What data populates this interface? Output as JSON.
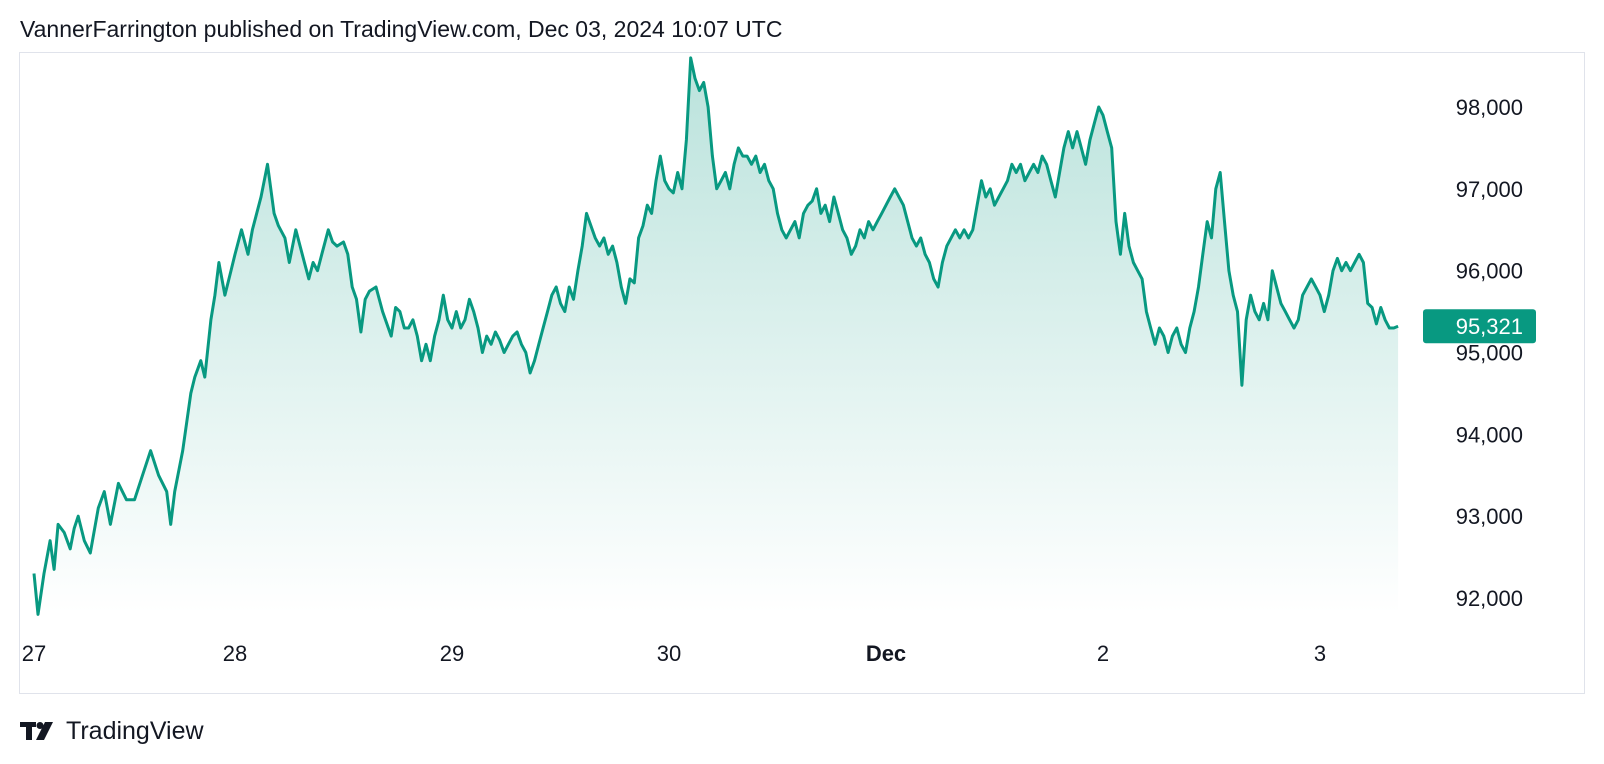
{
  "header": {
    "published_text": "VannerFarrington published on TradingView.com, Dec 03, 2024 10:07 UTC"
  },
  "footer": {
    "brand": "TradingView"
  },
  "colors": {
    "line": "#089981",
    "last_price_bg": "#089981",
    "border": "#e0e3eb"
  },
  "chart_data": {
    "type": "area",
    "x_ticks": [
      {
        "label": "27",
        "x": 0,
        "bold": false
      },
      {
        "label": "28",
        "x": 1,
        "bold": false
      },
      {
        "label": "29",
        "x": 2,
        "bold": false
      },
      {
        "label": "30",
        "x": 3,
        "bold": false
      },
      {
        "label": "Dec",
        "x": 4,
        "bold": true
      },
      {
        "label": "2",
        "x": 5,
        "bold": false
      },
      {
        "label": "3",
        "x": 6,
        "bold": false
      }
    ],
    "y_ticks": [
      92000,
      93000,
      94000,
      95000,
      96000,
      97000,
      98000
    ],
    "y_tick_labels": [
      "92,000",
      "93,000",
      "94,000",
      "95,000",
      "96,000",
      "97,000",
      "98,000"
    ],
    "ylim": [
      91750,
      98700
    ],
    "xlim": [
      0,
      6.55
    ],
    "last_price": 95321,
    "last_price_label": "95,321",
    "grid": false,
    "series": [
      {
        "points": [
          [
            0.0,
            92300
          ],
          [
            0.02,
            91800
          ],
          [
            0.05,
            92300
          ],
          [
            0.08,
            92700
          ],
          [
            0.1,
            92350
          ],
          [
            0.12,
            92900
          ],
          [
            0.15,
            92800
          ],
          [
            0.18,
            92600
          ],
          [
            0.2,
            92850
          ],
          [
            0.22,
            93000
          ],
          [
            0.25,
            92700
          ],
          [
            0.28,
            92550
          ],
          [
            0.32,
            93100
          ],
          [
            0.35,
            93300
          ],
          [
            0.38,
            92900
          ],
          [
            0.42,
            93400
          ],
          [
            0.46,
            93200
          ],
          [
            0.5,
            93200
          ],
          [
            0.54,
            93500
          ],
          [
            0.58,
            93800
          ],
          [
            0.62,
            93500
          ],
          [
            0.66,
            93300
          ],
          [
            0.68,
            92900
          ],
          [
            0.7,
            93300
          ],
          [
            0.74,
            93800
          ],
          [
            0.78,
            94500
          ],
          [
            0.8,
            94700
          ],
          [
            0.83,
            94900
          ],
          [
            0.85,
            94700
          ],
          [
            0.88,
            95400
          ],
          [
            0.9,
            95700
          ],
          [
            0.92,
            96100
          ],
          [
            0.95,
            95700
          ],
          [
            0.98,
            96000
          ],
          [
            1.0,
            96200
          ],
          [
            1.03,
            96500
          ],
          [
            1.06,
            96200
          ],
          [
            1.08,
            96500
          ],
          [
            1.1,
            96700
          ],
          [
            1.12,
            96900
          ],
          [
            1.15,
            97300
          ],
          [
            1.18,
            96700
          ],
          [
            1.2,
            96550
          ],
          [
            1.23,
            96400
          ],
          [
            1.25,
            96100
          ],
          [
            1.28,
            96500
          ],
          [
            1.3,
            96300
          ],
          [
            1.32,
            96100
          ],
          [
            1.34,
            95900
          ],
          [
            1.36,
            96100
          ],
          [
            1.38,
            96000
          ],
          [
            1.4,
            96200
          ],
          [
            1.43,
            96500
          ],
          [
            1.45,
            96350
          ],
          [
            1.47,
            96300
          ],
          [
            1.5,
            96350
          ],
          [
            1.52,
            96200
          ],
          [
            1.54,
            95800
          ],
          [
            1.56,
            95650
          ],
          [
            1.58,
            95250
          ],
          [
            1.6,
            95650
          ],
          [
            1.62,
            95750
          ],
          [
            1.65,
            95800
          ],
          [
            1.68,
            95500
          ],
          [
            1.7,
            95350
          ],
          [
            1.72,
            95200
          ],
          [
            1.74,
            95550
          ],
          [
            1.76,
            95500
          ],
          [
            1.78,
            95300
          ],
          [
            1.8,
            95300
          ],
          [
            1.82,
            95400
          ],
          [
            1.84,
            95200
          ],
          [
            1.86,
            94900
          ],
          [
            1.88,
            95100
          ],
          [
            1.9,
            94900
          ],
          [
            1.92,
            95200
          ],
          [
            1.94,
            95400
          ],
          [
            1.96,
            95700
          ],
          [
            1.98,
            95400
          ],
          [
            2.0,
            95300
          ],
          [
            2.02,
            95500
          ],
          [
            2.04,
            95300
          ],
          [
            2.06,
            95400
          ],
          [
            2.08,
            95650
          ],
          [
            2.1,
            95500
          ],
          [
            2.12,
            95300
          ],
          [
            2.14,
            95000
          ],
          [
            2.16,
            95200
          ],
          [
            2.18,
            95100
          ],
          [
            2.2,
            95250
          ],
          [
            2.22,
            95150
          ],
          [
            2.24,
            95000
          ],
          [
            2.26,
            95100
          ],
          [
            2.28,
            95200
          ],
          [
            2.3,
            95250
          ],
          [
            2.32,
            95100
          ],
          [
            2.34,
            95000
          ],
          [
            2.36,
            94750
          ],
          [
            2.38,
            94900
          ],
          [
            2.4,
            95100
          ],
          [
            2.42,
            95300
          ],
          [
            2.44,
            95500
          ],
          [
            2.46,
            95700
          ],
          [
            2.48,
            95800
          ],
          [
            2.5,
            95600
          ],
          [
            2.52,
            95500
          ],
          [
            2.54,
            95800
          ],
          [
            2.56,
            95650
          ],
          [
            2.58,
            96000
          ],
          [
            2.6,
            96300
          ],
          [
            2.62,
            96700
          ],
          [
            2.64,
            96550
          ],
          [
            2.66,
            96400
          ],
          [
            2.68,
            96300
          ],
          [
            2.7,
            96400
          ],
          [
            2.72,
            96200
          ],
          [
            2.74,
            96300
          ],
          [
            2.76,
            96100
          ],
          [
            2.78,
            95800
          ],
          [
            2.8,
            95600
          ],
          [
            2.82,
            95900
          ],
          [
            2.84,
            95850
          ],
          [
            2.86,
            96400
          ],
          [
            2.88,
            96550
          ],
          [
            2.9,
            96800
          ],
          [
            2.92,
            96700
          ],
          [
            2.94,
            97100
          ],
          [
            2.96,
            97400
          ],
          [
            2.98,
            97100
          ],
          [
            3.0,
            97000
          ],
          [
            3.02,
            96950
          ],
          [
            3.04,
            97200
          ],
          [
            3.06,
            97000
          ],
          [
            3.08,
            97600
          ],
          [
            3.1,
            98600
          ],
          [
            3.12,
            98350
          ],
          [
            3.14,
            98200
          ],
          [
            3.16,
            98300
          ],
          [
            3.18,
            98000
          ],
          [
            3.2,
            97400
          ],
          [
            3.22,
            97000
          ],
          [
            3.24,
            97100
          ],
          [
            3.26,
            97200
          ],
          [
            3.28,
            97000
          ],
          [
            3.3,
            97300
          ],
          [
            3.32,
            97500
          ],
          [
            3.34,
            97400
          ],
          [
            3.36,
            97400
          ],
          [
            3.38,
            97300
          ],
          [
            3.4,
            97400
          ],
          [
            3.42,
            97200
          ],
          [
            3.44,
            97300
          ],
          [
            3.46,
            97100
          ],
          [
            3.48,
            97000
          ],
          [
            3.5,
            96700
          ],
          [
            3.52,
            96500
          ],
          [
            3.54,
            96400
          ],
          [
            3.56,
            96500
          ],
          [
            3.58,
            96600
          ],
          [
            3.6,
            96400
          ],
          [
            3.62,
            96700
          ],
          [
            3.64,
            96800
          ],
          [
            3.66,
            96850
          ],
          [
            3.68,
            97000
          ],
          [
            3.7,
            96700
          ],
          [
            3.72,
            96800
          ],
          [
            3.74,
            96600
          ],
          [
            3.76,
            96900
          ],
          [
            3.78,
            96700
          ],
          [
            3.8,
            96500
          ],
          [
            3.82,
            96400
          ],
          [
            3.84,
            96200
          ],
          [
            3.86,
            96300
          ],
          [
            3.88,
            96500
          ],
          [
            3.9,
            96400
          ],
          [
            3.92,
            96600
          ],
          [
            3.94,
            96500
          ],
          [
            3.96,
            96600
          ],
          [
            3.98,
            96700
          ],
          [
            4.0,
            96800
          ],
          [
            4.02,
            96900
          ],
          [
            4.04,
            97000
          ],
          [
            4.06,
            96900
          ],
          [
            4.08,
            96800
          ],
          [
            4.1,
            96600
          ],
          [
            4.12,
            96400
          ],
          [
            4.14,
            96300
          ],
          [
            4.16,
            96400
          ],
          [
            4.18,
            96200
          ],
          [
            4.2,
            96100
          ],
          [
            4.22,
            95900
          ],
          [
            4.24,
            95800
          ],
          [
            4.26,
            96100
          ],
          [
            4.28,
            96300
          ],
          [
            4.3,
            96400
          ],
          [
            4.32,
            96500
          ],
          [
            4.34,
            96400
          ],
          [
            4.36,
            96500
          ],
          [
            4.38,
            96400
          ],
          [
            4.4,
            96500
          ],
          [
            4.42,
            96800
          ],
          [
            4.44,
            97100
          ],
          [
            4.46,
            96900
          ],
          [
            4.48,
            97000
          ],
          [
            4.5,
            96800
          ],
          [
            4.52,
            96900
          ],
          [
            4.54,
            97000
          ],
          [
            4.56,
            97100
          ],
          [
            4.58,
            97300
          ],
          [
            4.6,
            97200
          ],
          [
            4.62,
            97300
          ],
          [
            4.64,
            97100
          ],
          [
            4.66,
            97200
          ],
          [
            4.68,
            97300
          ],
          [
            4.7,
            97200
          ],
          [
            4.72,
            97400
          ],
          [
            4.74,
            97300
          ],
          [
            4.76,
            97100
          ],
          [
            4.78,
            96900
          ],
          [
            4.8,
            97200
          ],
          [
            4.82,
            97500
          ],
          [
            4.84,
            97700
          ],
          [
            4.86,
            97500
          ],
          [
            4.88,
            97700
          ],
          [
            4.9,
            97500
          ],
          [
            4.92,
            97300
          ],
          [
            4.94,
            97600
          ],
          [
            4.96,
            97800
          ],
          [
            4.98,
            98000
          ],
          [
            5.0,
            97900
          ],
          [
            5.02,
            97700
          ],
          [
            5.04,
            97500
          ],
          [
            5.06,
            96600
          ],
          [
            5.08,
            96200
          ],
          [
            5.1,
            96700
          ],
          [
            5.12,
            96300
          ],
          [
            5.14,
            96100
          ],
          [
            5.16,
            96000
          ],
          [
            5.18,
            95900
          ],
          [
            5.2,
            95500
          ],
          [
            5.22,
            95300
          ],
          [
            5.24,
            95100
          ],
          [
            5.26,
            95300
          ],
          [
            5.28,
            95200
          ],
          [
            5.3,
            95000
          ],
          [
            5.32,
            95200
          ],
          [
            5.34,
            95300
          ],
          [
            5.36,
            95100
          ],
          [
            5.38,
            95000
          ],
          [
            5.4,
            95300
          ],
          [
            5.42,
            95500
          ],
          [
            5.44,
            95800
          ],
          [
            5.46,
            96200
          ],
          [
            5.48,
            96600
          ],
          [
            5.5,
            96400
          ],
          [
            5.52,
            97000
          ],
          [
            5.54,
            97200
          ],
          [
            5.56,
            96600
          ],
          [
            5.58,
            96000
          ],
          [
            5.6,
            95700
          ],
          [
            5.62,
            95500
          ],
          [
            5.64,
            94600
          ],
          [
            5.66,
            95400
          ],
          [
            5.68,
            95700
          ],
          [
            5.7,
            95500
          ],
          [
            5.72,
            95400
          ],
          [
            5.74,
            95600
          ],
          [
            5.76,
            95400
          ],
          [
            5.78,
            96000
          ],
          [
            5.8,
            95800
          ],
          [
            5.82,
            95600
          ],
          [
            5.84,
            95500
          ],
          [
            5.86,
            95400
          ],
          [
            5.88,
            95300
          ],
          [
            5.9,
            95400
          ],
          [
            5.92,
            95700
          ],
          [
            5.94,
            95800
          ],
          [
            5.96,
            95900
          ],
          [
            5.98,
            95800
          ],
          [
            6.0,
            95700
          ],
          [
            6.02,
            95500
          ],
          [
            6.04,
            95700
          ],
          [
            6.06,
            96000
          ],
          [
            6.08,
            96150
          ],
          [
            6.1,
            96000
          ],
          [
            6.12,
            96100
          ],
          [
            6.14,
            96000
          ],
          [
            6.16,
            96100
          ],
          [
            6.18,
            96200
          ],
          [
            6.2,
            96100
          ],
          [
            6.22,
            95600
          ],
          [
            6.24,
            95550
          ],
          [
            6.26,
            95350
          ],
          [
            6.28,
            95550
          ],
          [
            6.3,
            95400
          ],
          [
            6.32,
            95300
          ],
          [
            6.34,
            95300
          ],
          [
            6.36,
            95321
          ]
        ]
      }
    ]
  }
}
